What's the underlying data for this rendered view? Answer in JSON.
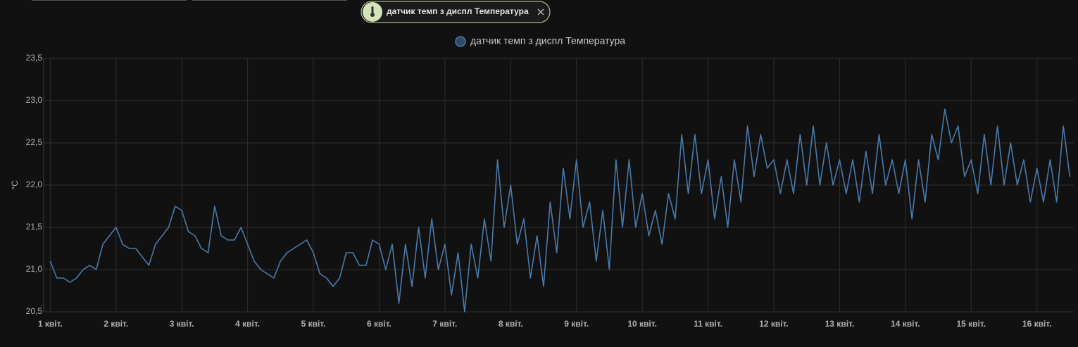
{
  "filter_chip": {
    "label": "датчик темп з диспл Температура"
  },
  "chart_data": {
    "type": "line",
    "ylabel": "°C",
    "xlim": [
      0.9,
      16.56
    ],
    "ylim": [
      20.5,
      23.5
    ],
    "xticks": [
      {
        "value": 1,
        "label": "1 квіт."
      },
      {
        "value": 2,
        "label": "2 квіт."
      },
      {
        "value": 3,
        "label": "3 квіт."
      },
      {
        "value": 4,
        "label": "4 квіт."
      },
      {
        "value": 5,
        "label": "5 квіт."
      },
      {
        "value": 6,
        "label": "6 квіт."
      },
      {
        "value": 7,
        "label": "7 квіт."
      },
      {
        "value": 8,
        "label": "8 квіт."
      },
      {
        "value": 9,
        "label": "9 квіт."
      },
      {
        "value": 10,
        "label": "10 квіт."
      },
      {
        "value": 11,
        "label": "11 квіт."
      },
      {
        "value": 12,
        "label": "12 квіт."
      },
      {
        "value": 13,
        "label": "13 квіт."
      },
      {
        "value": 14,
        "label": "14 квіт."
      },
      {
        "value": 15,
        "label": "15 квіт."
      },
      {
        "value": 16,
        "label": "16 квіт."
      }
    ],
    "yticks": [
      {
        "value": 20.5,
        "label": "20,5"
      },
      {
        "value": 21,
        "label": "21,0"
      },
      {
        "value": 21.5,
        "label": "21,5"
      },
      {
        "value": 22,
        "label": "22,0"
      },
      {
        "value": 22.5,
        "label": "22,5"
      },
      {
        "value": 23,
        "label": "23,0"
      },
      {
        "value": 23.5,
        "label": "23,5"
      }
    ],
    "grid": true,
    "x": [
      1.0,
      1.1,
      1.2,
      1.3,
      1.4,
      1.5,
      1.6,
      1.7,
      1.8,
      1.9,
      2.0,
      2.1,
      2.2,
      2.3,
      2.4,
      2.5,
      2.6,
      2.7,
      2.8,
      2.9,
      3.0,
      3.1,
      3.2,
      3.3,
      3.4,
      3.5,
      3.6,
      3.7,
      3.8,
      3.9,
      4.0,
      4.1,
      4.2,
      4.3,
      4.4,
      4.5,
      4.6,
      4.7,
      4.8,
      4.9,
      5.0,
      5.1,
      5.2,
      5.3,
      5.4,
      5.5,
      5.6,
      5.7,
      5.8,
      5.9,
      6.0,
      6.1,
      6.2,
      6.3,
      6.4,
      6.5,
      6.6,
      6.7,
      6.8,
      6.9,
      7.0,
      7.1,
      7.2,
      7.3,
      7.4,
      7.5,
      7.6,
      7.7,
      7.8,
      7.9,
      8.0,
      8.1,
      8.2,
      8.3,
      8.4,
      8.5,
      8.6,
      8.7,
      8.8,
      8.9,
      9.0,
      9.1,
      9.2,
      9.3,
      9.4,
      9.5,
      9.6,
      9.7,
      9.8,
      9.9,
      10.0,
      10.1,
      10.2,
      10.3,
      10.4,
      10.5,
      10.6,
      10.7,
      10.8,
      10.9,
      11.0,
      11.1,
      11.2,
      11.3,
      11.4,
      11.5,
      11.6,
      11.7,
      11.8,
      11.9,
      12.0,
      12.1,
      12.2,
      12.3,
      12.4,
      12.5,
      12.6,
      12.7,
      12.8,
      12.9,
      13.0,
      13.1,
      13.2,
      13.3,
      13.4,
      13.5,
      13.6,
      13.7,
      13.8,
      13.9,
      14.0,
      14.1,
      14.2,
      14.3,
      14.4,
      14.5,
      14.6,
      14.7,
      14.8,
      14.9,
      15.0,
      15.1,
      15.2,
      15.3,
      15.4,
      15.5,
      15.6,
      15.7,
      15.8,
      15.9,
      16.0,
      16.1,
      16.2,
      16.3,
      16.4,
      16.5
    ],
    "series": [
      {
        "name": "датчик темп з диспл Температура",
        "color": "#4a7aab",
        "values": [
          21.1,
          20.9,
          20.9,
          20.85,
          20.9,
          21.0,
          21.05,
          21.0,
          21.3,
          21.4,
          21.5,
          21.3,
          21.25,
          21.25,
          21.15,
          21.05,
          21.3,
          21.4,
          21.5,
          21.75,
          21.7,
          21.45,
          21.4,
          21.25,
          21.2,
          21.75,
          21.4,
          21.35,
          21.35,
          21.5,
          21.3,
          21.1,
          21.0,
          20.95,
          20.9,
          21.1,
          21.2,
          21.25,
          21.3,
          21.35,
          21.2,
          20.95,
          20.9,
          20.8,
          20.9,
          21.2,
          21.2,
          21.05,
          21.05,
          21.35,
          21.3,
          21.0,
          21.3,
          20.6,
          21.3,
          20.8,
          21.5,
          20.9,
          21.6,
          21.0,
          21.3,
          20.7,
          21.2,
          20.5,
          21.3,
          20.9,
          21.6,
          21.1,
          22.3,
          21.5,
          22.0,
          21.3,
          21.6,
          20.9,
          21.4,
          20.8,
          21.8,
          21.2,
          22.2,
          21.6,
          22.3,
          21.5,
          21.8,
          21.1,
          21.7,
          21.0,
          22.3,
          21.5,
          22.3,
          21.5,
          21.9,
          21.4,
          21.7,
          21.3,
          21.9,
          21.6,
          22.6,
          21.9,
          22.6,
          21.9,
          22.3,
          21.6,
          22.1,
          21.5,
          22.3,
          21.8,
          22.7,
          22.1,
          22.6,
          22.2,
          22.3,
          21.9,
          22.3,
          21.9,
          22.6,
          22.0,
          22.7,
          22.0,
          22.5,
          22.0,
          22.3,
          21.9,
          22.3,
          21.8,
          22.4,
          21.9,
          22.6,
          22.0,
          22.3,
          21.9,
          22.3,
          21.6,
          22.3,
          21.8,
          22.6,
          22.3,
          22.9,
          22.5,
          22.7,
          22.1,
          22.3,
          21.9,
          22.6,
          22.0,
          22.7,
          22.0,
          22.5,
          22.0,
          22.3,
          21.8,
          22.2,
          21.8,
          22.3,
          21.8,
          22.7,
          22.1
        ]
      }
    ]
  }
}
